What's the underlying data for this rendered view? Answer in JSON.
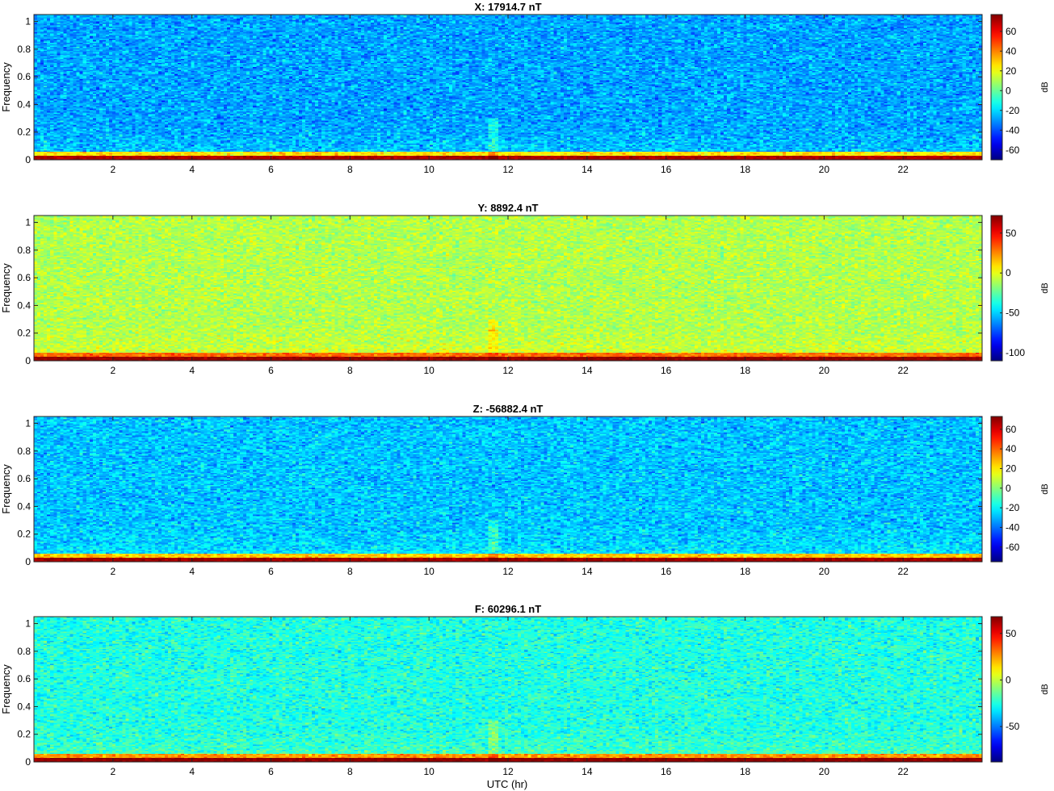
{
  "figure": {
    "xlabel": "UTC (hr)",
    "colormap": "jet"
  },
  "chart_data": [
    {
      "type": "heatmap",
      "title": "X: 17914.7 nT",
      "xlabel": "",
      "ylabel": "Frequency",
      "xlim": [
        0,
        24
      ],
      "ylim": [
        0,
        1.05
      ],
      "x_ticks": [
        2,
        4,
        6,
        8,
        10,
        12,
        14,
        16,
        18,
        20,
        22
      ],
      "y_ticks": [
        0,
        0.2,
        0.4,
        0.6,
        0.8,
        1
      ],
      "colorbar_label": "dB",
      "clim": [
        -70,
        77
      ],
      "colorbar_ticks": [
        -60,
        -40,
        -20,
        0,
        20,
        40,
        60
      ],
      "background_level_db": -28,
      "low_freq_band_db": 25,
      "lowest_freq_db": 70
    },
    {
      "type": "heatmap",
      "title": "Y: 8892.4 nT",
      "xlabel": "",
      "ylabel": "Frequency",
      "xlim": [
        0,
        24
      ],
      "ylim": [
        0,
        1.05
      ],
      "x_ticks": [
        2,
        4,
        6,
        8,
        10,
        12,
        14,
        16,
        18,
        20,
        22
      ],
      "y_ticks": [
        0,
        0.2,
        0.4,
        0.6,
        0.8,
        1
      ],
      "colorbar_label": "dB",
      "clim": [
        -110,
        72
      ],
      "colorbar_ticks": [
        -100,
        -50,
        0,
        50
      ],
      "background_level_db": -10,
      "low_freq_band_db": 30,
      "lowest_freq_db": 68
    },
    {
      "type": "heatmap",
      "title": "Z: -56882.4 nT",
      "xlabel": "",
      "ylabel": "Frequency",
      "xlim": [
        0,
        24
      ],
      "ylim": [
        0,
        1.05
      ],
      "x_ticks": [
        2,
        4,
        6,
        8,
        10,
        12,
        14,
        16,
        18,
        20,
        22
      ],
      "y_ticks": [
        0,
        0.2,
        0.4,
        0.6,
        0.8,
        1
      ],
      "colorbar_label": "dB",
      "clim": [
        -75,
        73
      ],
      "colorbar_ticks": [
        -60,
        -40,
        -20,
        0,
        20,
        40,
        60
      ],
      "background_level_db": -28,
      "low_freq_band_db": 25,
      "lowest_freq_db": 68
    },
    {
      "type": "heatmap",
      "title": "F: 60296.1 nT",
      "xlabel": "UTC (hr)",
      "ylabel": "Frequency",
      "xlim": [
        0,
        24
      ],
      "ylim": [
        0,
        1.05
      ],
      "x_ticks": [
        2,
        4,
        6,
        8,
        10,
        12,
        14,
        16,
        18,
        20,
        22
      ],
      "y_ticks": [
        0,
        0.2,
        0.4,
        0.6,
        0.8,
        1
      ],
      "colorbar_label": "dB",
      "clim": [
        -88,
        68
      ],
      "colorbar_ticks": [
        -50,
        0,
        50
      ],
      "background_level_db": -25,
      "low_freq_band_db": 25,
      "lowest_freq_db": 65
    }
  ]
}
